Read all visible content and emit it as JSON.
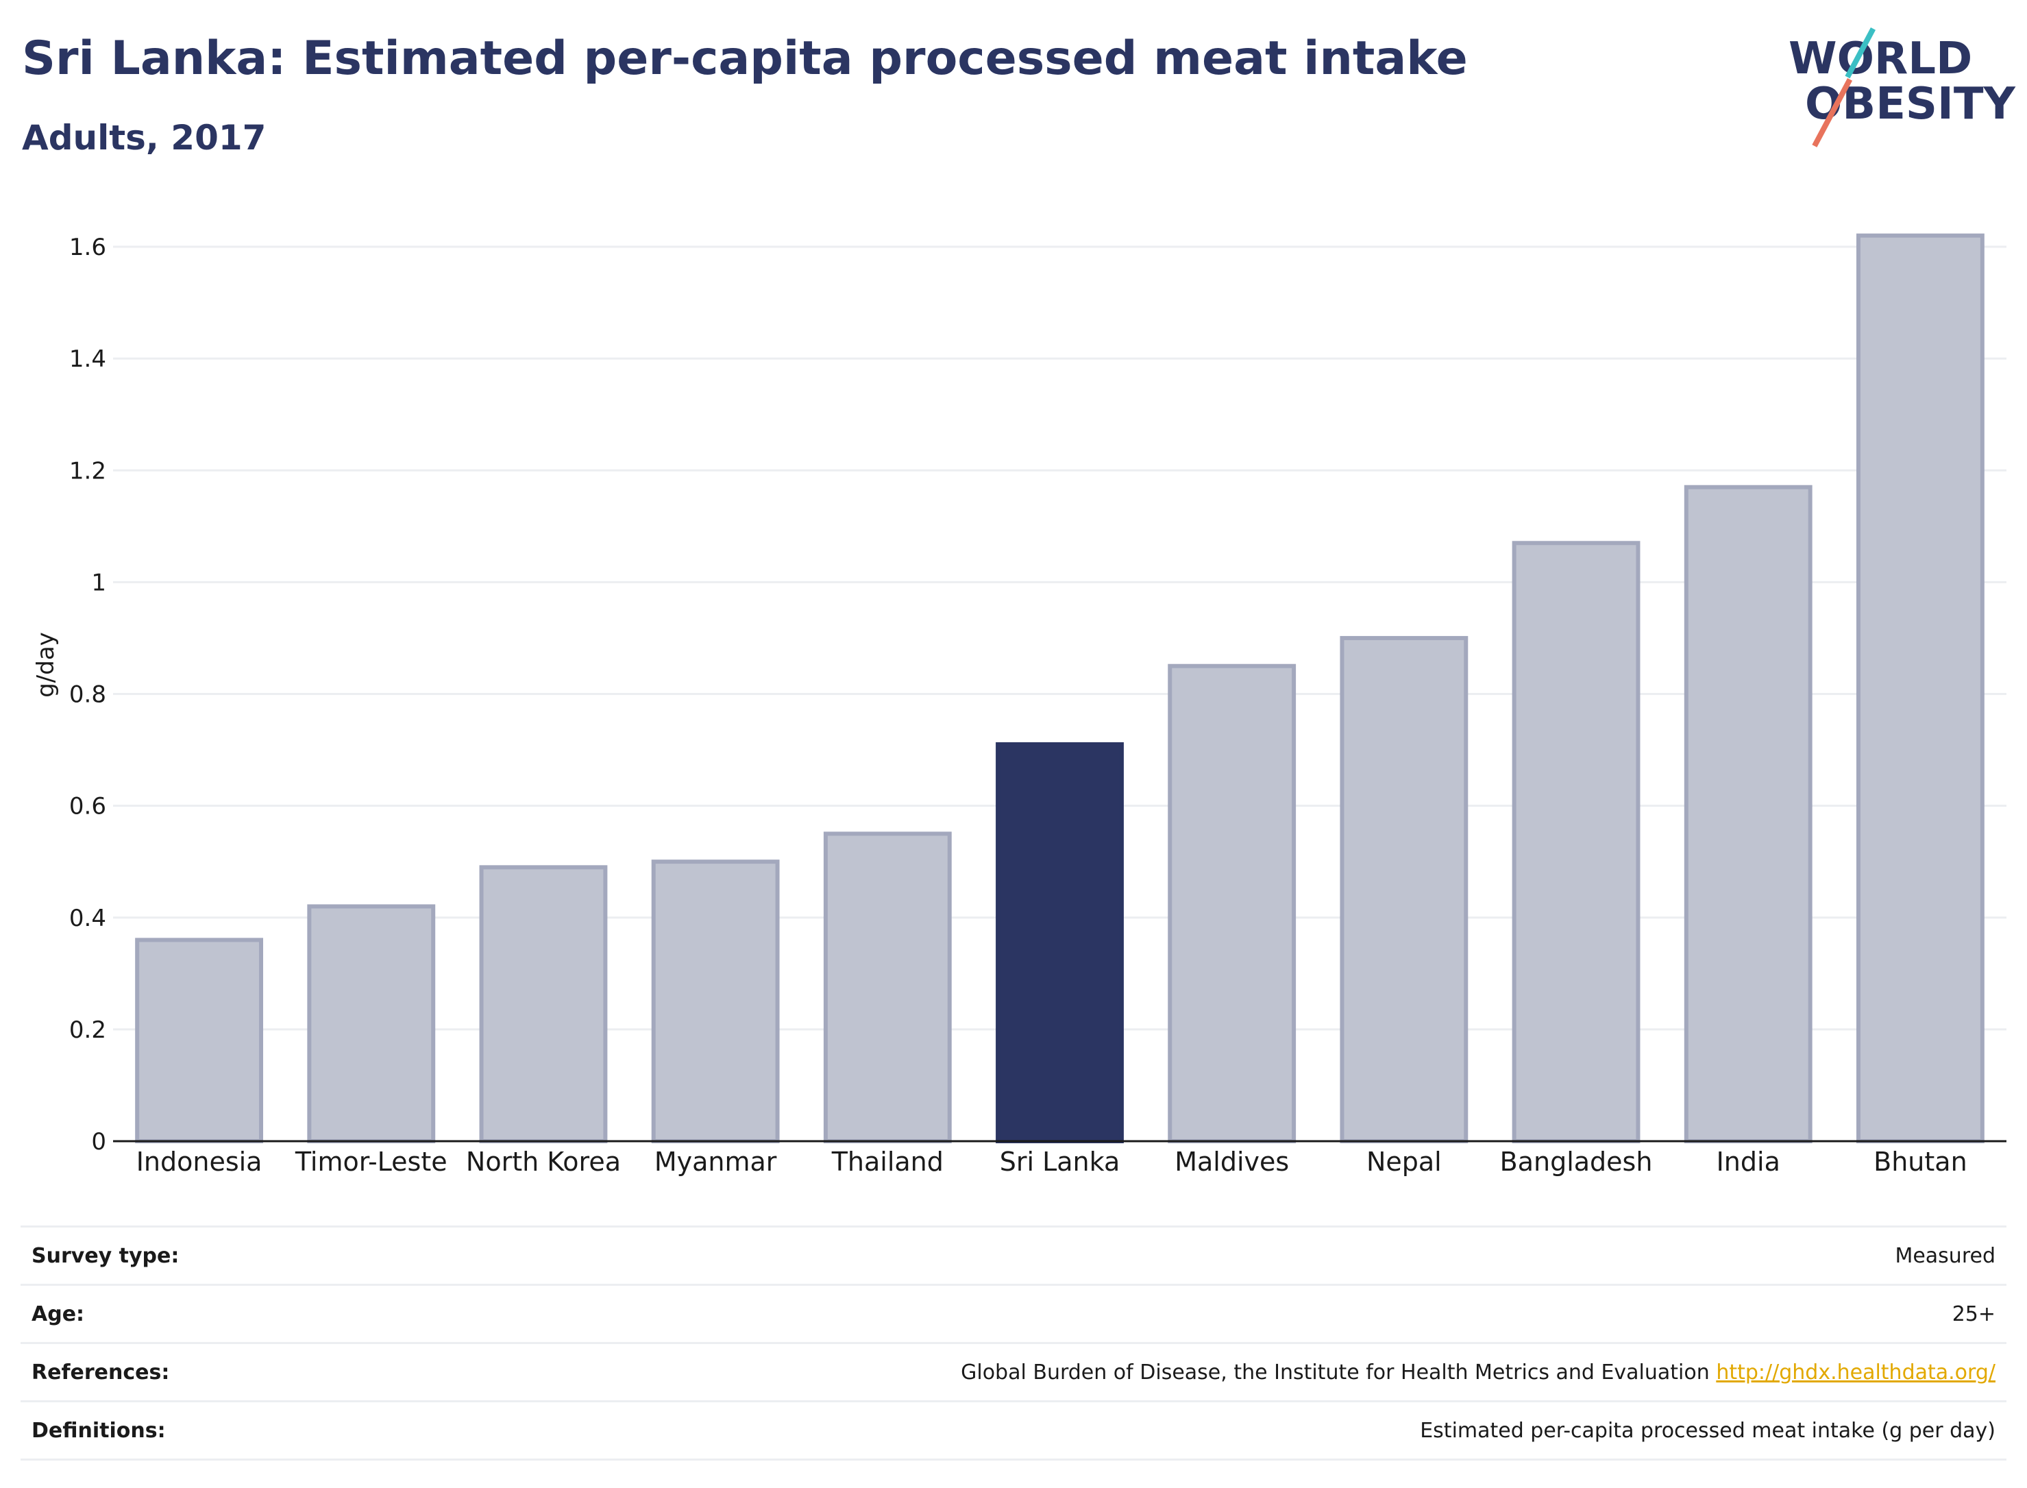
{
  "header": {
    "title": "Sri Lanka: Estimated per-capita processed meat intake",
    "subtitle": "Adults, 2017"
  },
  "logo": {
    "line1": "WORLD",
    "line2": "OBESITY"
  },
  "chart_data": {
    "type": "bar",
    "categories": [
      "Indonesia",
      "Timor-Leste",
      "North Korea",
      "Myanmar",
      "Thailand",
      "Sri Lanka",
      "Maldives",
      "Nepal",
      "Bangladesh",
      "India",
      "Bhutan"
    ],
    "values": [
      0.36,
      0.42,
      0.49,
      0.5,
      0.55,
      0.71,
      0.85,
      0.9,
      1.07,
      1.17,
      1.62
    ],
    "highlight": "Sri Lanka",
    "ylabel": "g/day",
    "ylim": [
      0,
      1.6
    ],
    "yticks": [
      0,
      0.2,
      0.4,
      0.6,
      0.8,
      1,
      1.2,
      1.4,
      1.6
    ],
    "ytick_labels": [
      "0",
      "0.2",
      "0.4",
      "0.6",
      "0.8",
      "1",
      "1.2",
      "1.4",
      "1.6"
    ],
    "grid": true,
    "colors": {
      "bar": "#bfc3d0",
      "bar_edge": "#a3a8bd",
      "highlight": "#2b3562",
      "grid": "#eceef1"
    }
  },
  "footer": {
    "survey_type": {
      "label": "Survey type:",
      "value": "Measured"
    },
    "age": {
      "label": "Age:",
      "value": "25+"
    },
    "references": {
      "label": "References:",
      "value": "Global Burden of Disease, the Institute for Health Metrics and Evaluation",
      "link": "http://ghdx.healthdata.org/"
    },
    "definitions": {
      "label": "Definitions:",
      "value": "Estimated per-capita processed meat intake (g per day)"
    }
  }
}
